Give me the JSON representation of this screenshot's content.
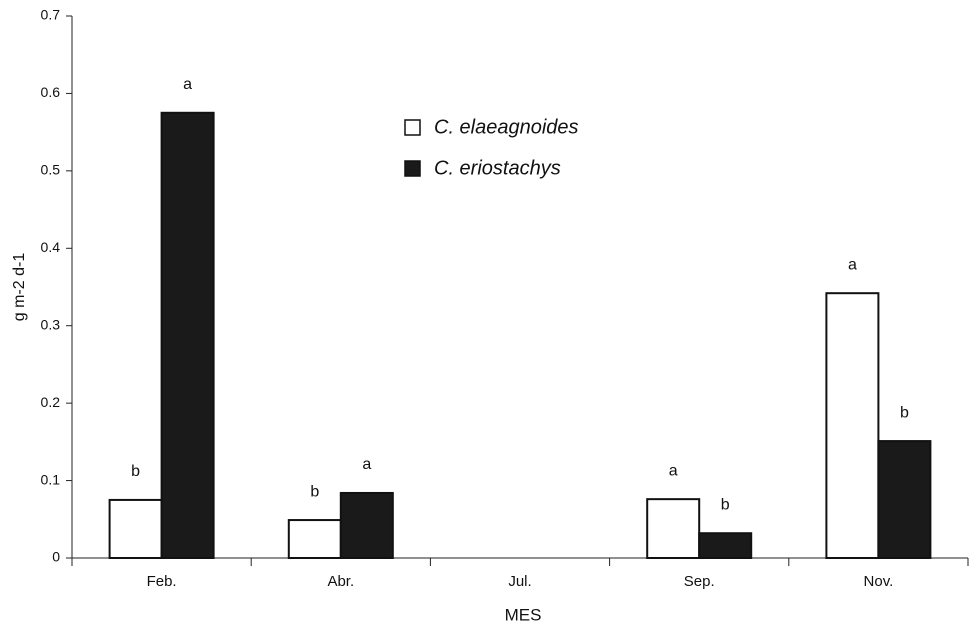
{
  "chart_data": {
    "type": "bar",
    "x_label": "MES",
    "y_label": "g m-2 d-1",
    "categories": [
      "Feb.",
      "Abr.",
      "Jul.",
      "Sep.",
      "Nov."
    ],
    "series": [
      {
        "name": "C. elaeagnoides",
        "color": "#ffffff",
        "values": [
          0.075,
          0.049,
          null,
          0.076,
          0.342
        ],
        "letters": [
          "b",
          "b",
          null,
          "a",
          "a"
        ]
      },
      {
        "name": "C. eriostachys",
        "color": "#1a1a1a",
        "values": [
          0.575,
          0.084,
          null,
          0.032,
          0.151
        ],
        "letters": [
          "a",
          "a",
          null,
          "b",
          "b"
        ]
      }
    ],
    "ylim": [
      0,
      0.7
    ],
    "yticks": [
      0,
      0.1,
      0.2,
      0.3,
      0.4,
      0.5,
      0.6,
      0.7
    ],
    "grid": false
  }
}
